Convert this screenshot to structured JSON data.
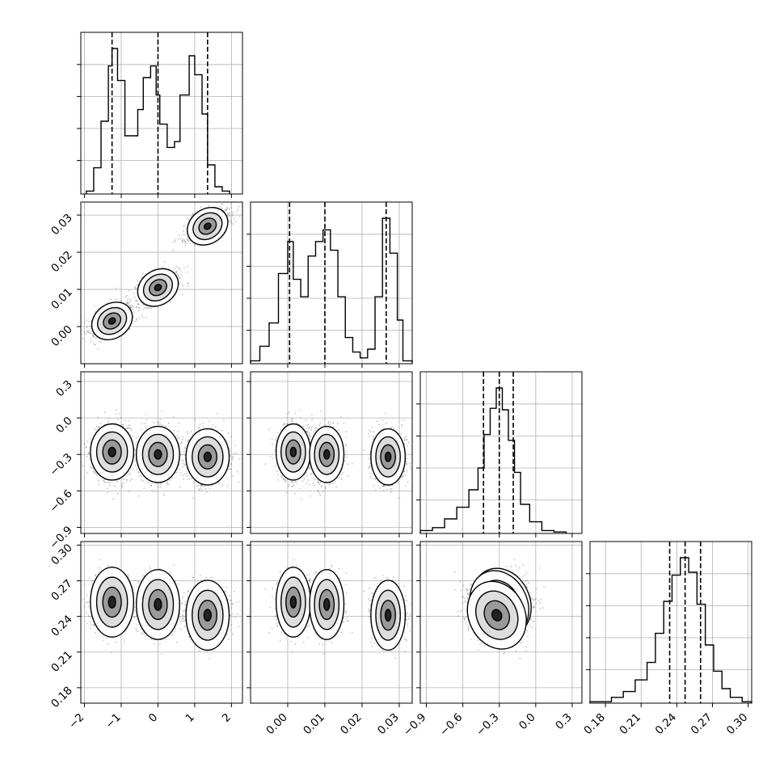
{
  "chart_data": {
    "type": "corner",
    "parameters": [
      {
        "ticks": [
          -2,
          -1,
          0,
          1,
          2
        ],
        "tick_labels": [
          "−2",
          "−1",
          "0",
          "1",
          "2"
        ],
        "range": [
          -2.1,
          2.3
        ]
      },
      {
        "ticks": [
          0.0,
          0.01,
          0.02,
          0.03
        ],
        "tick_labels": [
          "0.00",
          "0.01",
          "0.02",
          "0.03"
        ],
        "range": [
          -0.01,
          0.0335
        ]
      },
      {
        "ticks": [
          -0.9,
          -0.6,
          -0.3,
          0.0,
          0.3
        ],
        "tick_labels": [
          "−0.9",
          "−0.6",
          "−0.3",
          "0.0",
          "0.3"
        ],
        "range": [
          -0.95,
          0.38
        ]
      },
      {
        "ticks": [
          0.18,
          0.21,
          0.24,
          0.27,
          0.3
        ],
        "tick_labels": [
          "0.18",
          "0.21",
          "0.24",
          "0.27",
          "0.30"
        ],
        "range": [
          0.167,
          0.303
        ]
      }
    ],
    "histograms": [
      {
        "bins": [
          -1.95,
          -1.75,
          -1.55,
          -1.35,
          -1.25,
          -1.1,
          -0.9,
          -0.7,
          -0.55,
          -0.4,
          -0.2,
          -0.05,
          0.05,
          0.25,
          0.45,
          0.6,
          0.85,
          1.0,
          1.2,
          1.35,
          1.55,
          1.75,
          1.95
        ],
        "counts": [
          0.02,
          0.18,
          0.5,
          0.88,
          1.0,
          0.78,
          0.4,
          0.4,
          0.58,
          0.8,
          0.88,
          0.68,
          0.48,
          0.32,
          0.36,
          0.68,
          0.95,
          0.82,
          0.55,
          0.2,
          0.05,
          0.02
        ],
        "quantiles": [
          -1.25,
          0.0,
          1.35
        ]
      },
      {
        "bins": [
          -0.01,
          -0.0075,
          -0.005,
          -0.0025,
          0.0,
          0.0015,
          0.0035,
          0.0055,
          0.0075,
          0.0095,
          0.0115,
          0.0135,
          0.0155,
          0.0175,
          0.0195,
          0.0215,
          0.0235,
          0.0255,
          0.0275,
          0.0295,
          0.031,
          0.0335
        ],
        "counts": [
          0.02,
          0.12,
          0.28,
          0.62,
          0.84,
          0.58,
          0.46,
          0.74,
          0.84,
          0.92,
          0.78,
          0.46,
          0.18,
          0.08,
          0.04,
          0.1,
          0.46,
          1.0,
          0.76,
          0.3,
          0.02
        ],
        "quantiles": [
          0.0005,
          0.01,
          0.0265
        ]
      },
      {
        "bins": [
          -0.95,
          -0.85,
          -0.75,
          -0.65,
          -0.55,
          -0.475,
          -0.425,
          -0.375,
          -0.325,
          -0.275,
          -0.225,
          -0.175,
          -0.125,
          -0.05,
          0.05,
          0.15,
          0.25
        ],
        "counts": [
          0.02,
          0.04,
          0.1,
          0.18,
          0.3,
          0.45,
          0.68,
          0.86,
          1.0,
          0.85,
          0.64,
          0.42,
          0.2,
          0.08,
          0.02,
          0.01
        ],
        "quantiles": [
          -0.43,
          -0.3,
          -0.185
        ]
      },
      {
        "bins": [
          0.165,
          0.185,
          0.195,
          0.205,
          0.215,
          0.222,
          0.229,
          0.236,
          0.243,
          0.25,
          0.257,
          0.264,
          0.271,
          0.278,
          0.285,
          0.295,
          0.305
        ],
        "counts": [
          0.01,
          0.04,
          0.08,
          0.16,
          0.28,
          0.48,
          0.7,
          0.88,
          1.0,
          0.9,
          0.68,
          0.4,
          0.22,
          0.1,
          0.04,
          0.01
        ],
        "quantiles": [
          0.234,
          0.247,
          0.26
        ]
      }
    ],
    "clusters": [
      {
        "p0": -1.25,
        "p1": 0.0015,
        "p2": -0.28,
        "p3": 0.252,
        "weight": 0.33
      },
      {
        "p0": 0.0,
        "p1": 0.0105,
        "p2": -0.3,
        "p3": 0.25,
        "weight": 0.33
      },
      {
        "p0": 1.35,
        "p1": 0.027,
        "p2": -0.32,
        "p3": 0.241,
        "weight": 0.34
      }
    ],
    "grid": true,
    "colors": {
      "line": "#000000",
      "grid": "#b0b0b0",
      "points": "#555555",
      "fill_dark": "#222222",
      "fill_light": "#eeeeee"
    }
  }
}
